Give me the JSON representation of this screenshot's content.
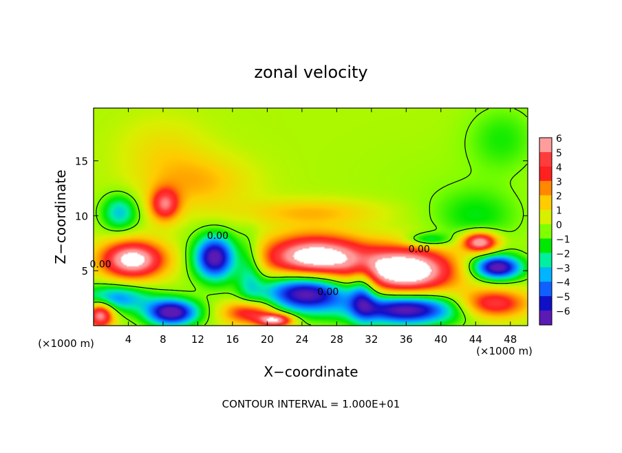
{
  "chart_data": {
    "type": "heatmap",
    "title": "zonal velocity",
    "xlabel": "X−coordinate",
    "ylabel": "Z−coordinate",
    "x_unit_left": "(×1000 m)",
    "x_unit_right": "(×1000 m)",
    "footer": "CONTOUR INTERVAL = 1.000E+01",
    "xlim": [
      0,
      50
    ],
    "ylim": [
      0,
      19.8
    ],
    "x_ticks": [
      4,
      8,
      12,
      16,
      20,
      24,
      28,
      32,
      36,
      40,
      44,
      48
    ],
    "y_ticks": [
      5,
      10,
      15
    ],
    "colorbar": {
      "levels": [
        6,
        5,
        4,
        3,
        2,
        1,
        0,
        -1,
        -2,
        -3,
        -4,
        -5,
        -6
      ],
      "colors": [
        "#ff9d9d",
        "#ff3c3c",
        "#ff2020",
        "#ff8800",
        "#ffcc00",
        "#d8f000",
        "#80ff00",
        "#00e800",
        "#00f0a0",
        "#00b4ff",
        "#1060ff",
        "#1010c8",
        "#5a1ab4"
      ],
      "labels": [
        "6",
        "5",
        "4",
        "3",
        "2",
        "1",
        "0",
        "−1",
        "−2",
        "−3",
        "−4",
        "−5",
        "−6"
      ]
    },
    "contour_labels": [
      {
        "text": "0.00",
        "x": 14.3,
        "y": 8.2
      },
      {
        "text": "0.00",
        "x": 0.8,
        "y": 5.6
      },
      {
        "text": "0.00",
        "x": 37.5,
        "y": 7.0
      },
      {
        "text": "0.00",
        "x": 27.0,
        "y": 3.1
      }
    ],
    "features": [
      {
        "kind": "background",
        "value": 0.5
      },
      {
        "kind": "blob",
        "x": 22,
        "y": 17,
        "rx": 18,
        "ry": 3,
        "value": 0.0
      },
      {
        "kind": "blob",
        "x": 40,
        "y": 13,
        "rx": 10,
        "ry": 4,
        "value": -0.2
      },
      {
        "kind": "blob",
        "x": 47,
        "y": 17,
        "rx": 4,
        "ry": 3,
        "value": -1.3
      },
      {
        "kind": "blob",
        "x": 44,
        "y": 10,
        "rx": 5,
        "ry": 2.5,
        "value": -1.5
      },
      {
        "kind": "blob",
        "x": 12,
        "y": 13,
        "rx": 6,
        "ry": 2.5,
        "value": 1.8
      },
      {
        "kind": "blob",
        "x": 8,
        "y": 16,
        "rx": 5,
        "ry": 3,
        "value": 1.0
      },
      {
        "kind": "blob",
        "x": 8.2,
        "y": 11,
        "rx": 1.7,
        "ry": 1.5,
        "value": 4.6
      },
      {
        "kind": "blob",
        "x": 3,
        "y": 10.3,
        "rx": 2.0,
        "ry": 1.6,
        "value": -3.2
      },
      {
        "kind": "blob",
        "x": 25,
        "y": 10.3,
        "rx": 8,
        "ry": 1.2,
        "value": 1.8
      },
      {
        "kind": "blob",
        "x": 4.5,
        "y": 6.0,
        "rx": 3.7,
        "ry": 1.7,
        "value": 7.0
      },
      {
        "kind": "blob",
        "x": 14.0,
        "y": 6.2,
        "rx": 2.4,
        "ry": 2.0,
        "value": -7.0
      },
      {
        "kind": "blob",
        "x": 25.5,
        "y": 6.2,
        "rx": 6.0,
        "ry": 2.0,
        "value": 7.5
      },
      {
        "kind": "blob",
        "x": 36.0,
        "y": 5.0,
        "rx": 5.5,
        "ry": 2.1,
        "value": 8.0
      },
      {
        "kind": "blob",
        "x": 46.5,
        "y": 5.3,
        "rx": 2.8,
        "ry": 1.1,
        "value": -7.0
      },
      {
        "kind": "blob",
        "x": 44.5,
        "y": 7.6,
        "rx": 2.0,
        "ry": 0.9,
        "value": 6.5
      },
      {
        "kind": "blob",
        "x": 38.5,
        "y": 7.8,
        "rx": 2.5,
        "ry": 0.6,
        "value": -2.5
      },
      {
        "kind": "blob",
        "x": 24.5,
        "y": 3.0,
        "rx": 5.0,
        "ry": 1.8,
        "value": -7.0
      },
      {
        "kind": "blob",
        "x": 36.0,
        "y": 1.5,
        "rx": 6.0,
        "ry": 1.4,
        "value": -7.0
      },
      {
        "kind": "blob",
        "x": 9.0,
        "y": 1.2,
        "rx": 3.0,
        "ry": 1.2,
        "value": -7.0
      },
      {
        "kind": "blob",
        "x": 18.0,
        "y": 1.2,
        "rx": 3.0,
        "ry": 1.1,
        "value": 4.5
      },
      {
        "kind": "blob",
        "x": 21.0,
        "y": 0.5,
        "rx": 2.0,
        "ry": 0.6,
        "value": 6.0
      },
      {
        "kind": "blob",
        "x": 46.0,
        "y": 2.0,
        "rx": 4.0,
        "ry": 1.3,
        "value": 4.5
      },
      {
        "kind": "blob",
        "x": 2.5,
        "y": 2.5,
        "rx": 4.0,
        "ry": 1.2,
        "value": -4.0
      },
      {
        "kind": "blob",
        "x": 0.8,
        "y": 1.0,
        "rx": 1.5,
        "ry": 1.2,
        "value": 6.0
      },
      {
        "kind": "blob",
        "x": 31.0,
        "y": 3.0,
        "rx": 1.5,
        "ry": 2.5,
        "value": -3.5
      },
      {
        "kind": "blob",
        "x": 18.0,
        "y": 5.0,
        "rx": 1.5,
        "ry": 3.0,
        "value": -2.5
      }
    ]
  }
}
